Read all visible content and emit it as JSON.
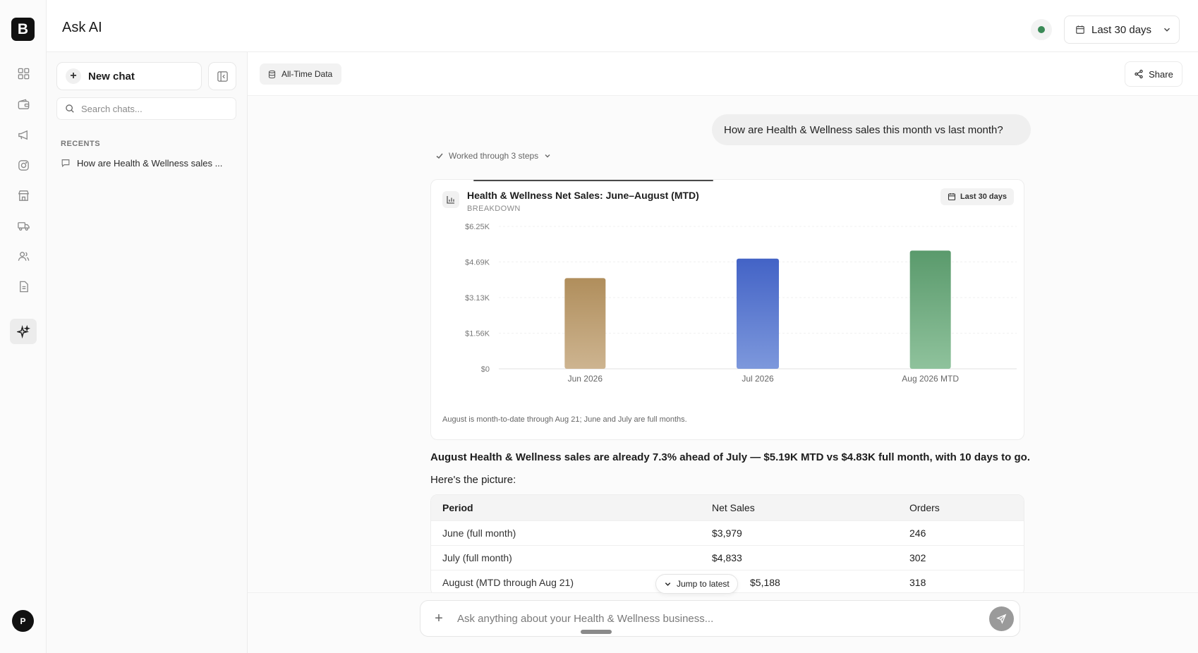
{
  "app": {
    "logo_letter": "B",
    "title": "Ask AI"
  },
  "header": {
    "range_label": "Last 30 days"
  },
  "rail": {
    "avatar_letter": "P"
  },
  "sidebar": {
    "new_chat_label": "New chat",
    "search_placeholder": "Search chats...",
    "recents_label": "RECENTS",
    "recents": [
      {
        "label": "How are Health & Wellness sales ..."
      }
    ]
  },
  "toolbar": {
    "data_chip_label": "All-Time Data",
    "share_label": "Share"
  },
  "conversation": {
    "user_message": "How are Health & Wellness sales this month vs last month?",
    "steps_label": "Worked through 3 steps",
    "chart_card": {
      "title": "Health & Wellness Net Sales: June–August (MTD)",
      "subtitle": "BREAKDOWN",
      "badge": "Last 30 days",
      "note": "August is month-to-date through Aug 21; June and July are full months."
    },
    "answer_bold": "August Health & Wellness sales are already 7.3% ahead of July — $5.19K MTD vs $4.83K full month, with 10 days to go.",
    "answer_intro": "Here's the picture:",
    "table": {
      "headers": [
        "Period",
        "Net Sales",
        "Orders"
      ],
      "rows": [
        [
          "June (full month)",
          "$3,979",
          "246"
        ],
        [
          "July (full month)",
          "$4,833",
          "302"
        ],
        [
          "August (MTD through Aug 21)",
          "$5,188",
          "318"
        ]
      ]
    },
    "jump_label": "Jump to latest"
  },
  "composer": {
    "placeholder": "Ask anything about your Health & Wellness business..."
  },
  "colors": {
    "status": "#3b8a57",
    "bar_jun": "#b8976a",
    "bar_jul": "#5575cf",
    "bar_aug": "#6aa97c"
  },
  "chart_data": {
    "type": "bar",
    "title": "Health & Wellness Net Sales: June–August (MTD)",
    "subtitle": "BREAKDOWN",
    "categories": [
      "Jun 2026",
      "Jul 2026",
      "Aug 2026 MTD"
    ],
    "values": [
      3979,
      4833,
      5188
    ],
    "y_ticks": [
      0,
      1560,
      3130,
      4690,
      6250
    ],
    "y_tick_labels": [
      "$0",
      "$1.56K",
      "$3.13K",
      "$4.69K",
      "$6.25K"
    ],
    "ylim": [
      0,
      6250
    ],
    "grid": true,
    "xlabel": "",
    "ylabel": ""
  }
}
